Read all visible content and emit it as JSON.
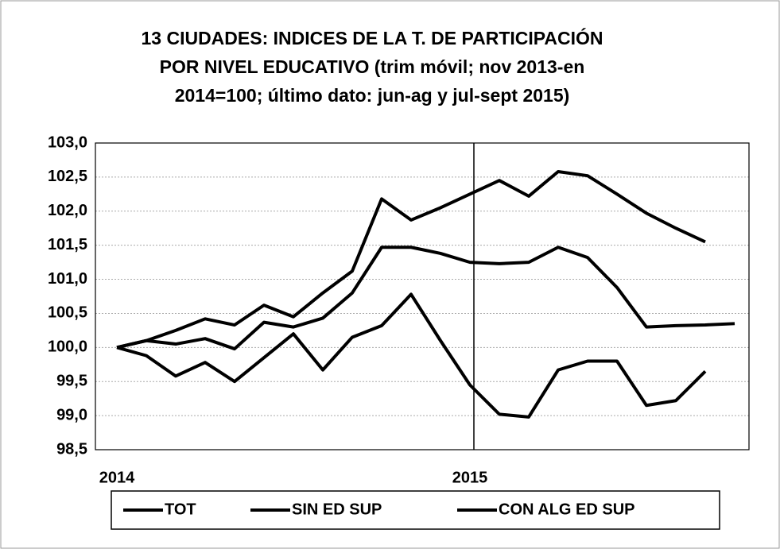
{
  "chart_data": {
    "type": "line",
    "title": [
      "13 CIUDADES: INDICES DE LA T. DE PARTICIPACIÓN",
      "POR NIVEL EDUCATIVO (trim móvil; nov 2013-en",
      "2014=100; último dato: jun-ag y jul-sept 2015)"
    ],
    "categories": [
      "2014",
      null,
      null,
      null,
      null,
      null,
      null,
      null,
      null,
      null,
      null,
      null,
      "2015",
      null,
      null,
      null,
      null,
      null,
      null,
      null,
      null,
      null
    ],
    "series": [
      {
        "name": "TOT",
        "color": "#000000",
        "values": [
          100.0,
          100.1,
          100.05,
          100.13,
          99.98,
          100.37,
          100.3,
          100.43,
          100.8,
          101.47,
          101.47,
          101.38,
          101.25,
          101.23,
          101.25,
          101.47,
          101.32,
          100.88,
          100.3,
          100.32,
          100.33,
          100.35
        ]
      },
      {
        "name": "SIN ED SUP",
        "color": "#000000",
        "values": [
          100.0,
          99.88,
          99.58,
          99.78,
          99.5,
          99.85,
          100.2,
          99.67,
          100.15,
          100.32,
          100.78,
          100.1,
          99.45,
          99.02,
          98.98,
          99.67,
          99.8,
          99.8,
          99.15,
          99.22,
          99.65,
          null
        ]
      },
      {
        "name": "CON ALG  ED SUP",
        "color": "#000000",
        "values": [
          100.0,
          100.1,
          100.25,
          100.42,
          100.33,
          100.62,
          100.45,
          100.8,
          101.12,
          102.18,
          101.87,
          102.05,
          102.25,
          102.45,
          102.22,
          102.58,
          102.52,
          102.25,
          101.97,
          101.75,
          101.55,
          null
        ]
      }
    ],
    "ylim": [
      98.5,
      103.0
    ],
    "yticks": [
      {
        "value": 98.5,
        "label": "98,5"
      },
      {
        "value": 99.0,
        "label": "99,0"
      },
      {
        "value": 99.5,
        "label": "99,5"
      },
      {
        "value": 100.0,
        "label": "100,0"
      },
      {
        "value": 100.5,
        "label": "100,5"
      },
      {
        "value": 101.0,
        "label": "101,0"
      },
      {
        "value": 101.5,
        "label": "101,5"
      },
      {
        "value": 102.0,
        "label": "102,0"
      },
      {
        "value": 102.5,
        "label": "102,5"
      },
      {
        "value": 103.0,
        "label": "103,0"
      }
    ],
    "grid": true,
    "legend": "bottom"
  }
}
